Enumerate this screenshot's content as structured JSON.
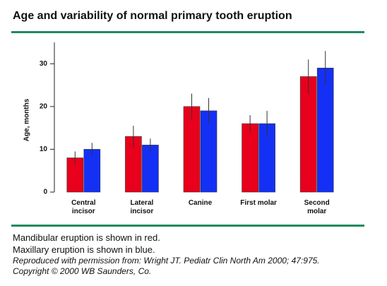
{
  "header": {
    "title": "Age and variability of normal primary tooth eruption"
  },
  "chart_data": {
    "type": "bar",
    "ylabel": "Age, months",
    "categories": [
      "Central incisor",
      "Lateral incisor",
      "Canine",
      "First molar",
      "Second molar"
    ],
    "series": [
      {
        "color": "#e8001c",
        "values": [
          8,
          13,
          20,
          16,
          27
        ],
        "error": [
          1.5,
          2.5,
          3,
          2,
          4
        ]
      },
      {
        "color": "#1430f5",
        "values": [
          10,
          11,
          19,
          16,
          29
        ],
        "error": [
          1.5,
          1.5,
          3,
          3,
          4
        ]
      }
    ],
    "ylim": [
      0,
      35
    ],
    "yticks": [
      0,
      10,
      20,
      30
    ]
  },
  "notes": {
    "lines": [
      "Mandibular eruption is shown in red.",
      "Maxillary eruption is shown in blue."
    ],
    "citation": "Reproduced with permission from: Wright JT. Pediatr Clin North Am 2000; 47:975. Copyright © 2000 WB Saunders, Co."
  }
}
